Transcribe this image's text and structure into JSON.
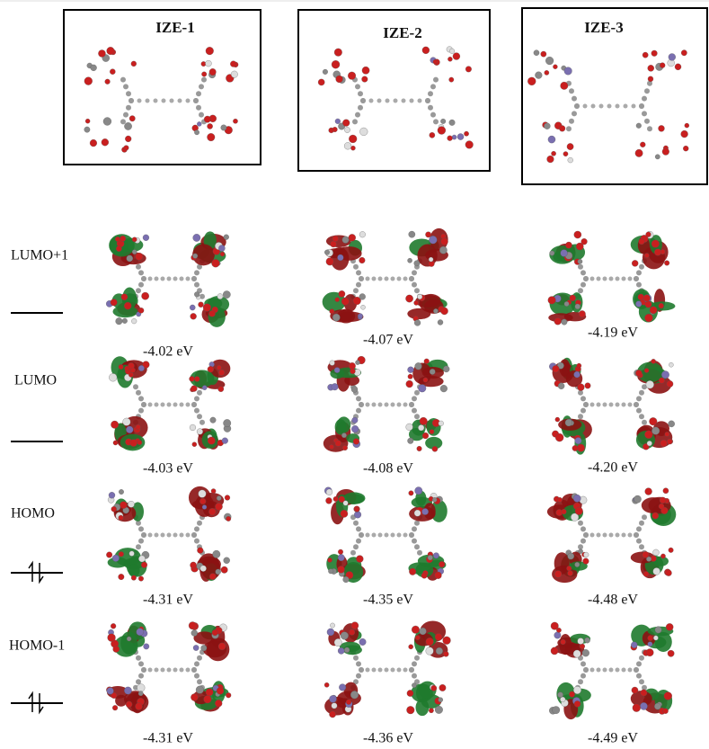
{
  "columns": [
    {
      "title": "IZE-1"
    },
    {
      "title": "IZE-2"
    },
    {
      "title": "IZE-3"
    }
  ],
  "orbitals": [
    {
      "label": "LUMO+1",
      "energies": [
        "-4.02 eV",
        "-4.07 eV",
        "-4.19 eV"
      ]
    },
    {
      "label": "LUMO",
      "energies": [
        "-4.03 eV",
        "-4.08 eV",
        "-4.20 eV"
      ]
    },
    {
      "label": "HOMO",
      "energies": [
        "-4.31 eV",
        "-4.35 eV",
        "-4.48 eV"
      ]
    },
    {
      "label": "HOMO-1",
      "energies": [
        "-4.31 eV",
        "-4.36 eV",
        "-4.49 eV"
      ]
    }
  ]
}
